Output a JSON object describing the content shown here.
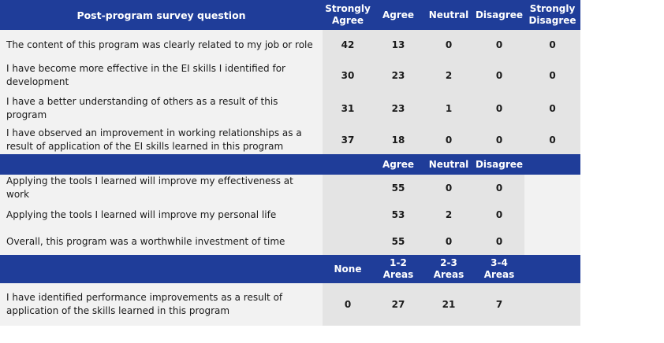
{
  "section1": {
    "headers": [
      "Post-program survey question",
      "Strongly Agree",
      "Agree",
      "Neutral",
      "Disagree",
      "Strongly Disagree"
    ],
    "rows": [
      {
        "question": "The content of this program was clearly related to my job or role",
        "values": [
          "42",
          "13",
          "0",
          "0",
          "0"
        ]
      },
      {
        "question": "I have become more effective in the EI skills I identified for development",
        "values": [
          "30",
          "23",
          "2",
          "0",
          "0"
        ]
      },
      {
        "question": "I have a better understanding of others as a result of this program",
        "values": [
          "31",
          "23",
          "1",
          "0",
          "0"
        ]
      },
      {
        "question": "I have observed an improvement in working relationships as a result of application of the EI skills learned in this program",
        "values": [
          "37",
          "18",
          "0",
          "0",
          "0"
        ]
      }
    ]
  },
  "section2": {
    "headers": [
      "Agree",
      "Neutral",
      "Disagree"
    ],
    "rows": [
      {
        "question": "Applying the tools I learned will improve my effectiveness at work",
        "values": [
          "55",
          "0",
          "0"
        ]
      },
      {
        "question": "Applying the tools I learned will improve my personal life",
        "values": [
          "53",
          "2",
          "0"
        ]
      },
      {
        "question": "Overall, this program was a worthwhile investment of time",
        "values": [
          "55",
          "0",
          "0"
        ]
      }
    ]
  },
  "section3": {
    "headers": [
      "None",
      "1-2 Areas",
      "2-3 Areas",
      "3-4 Areas"
    ],
    "rows": [
      {
        "question": "I have identified performance improvements as a result of application of the skills learned in this program",
        "values": [
          "0",
          "27",
          "21",
          "7"
        ]
      }
    ]
  },
  "colors": {
    "header": "#1f3d99",
    "row": "#f2f2f2",
    "cell": "#e4e4e4"
  }
}
